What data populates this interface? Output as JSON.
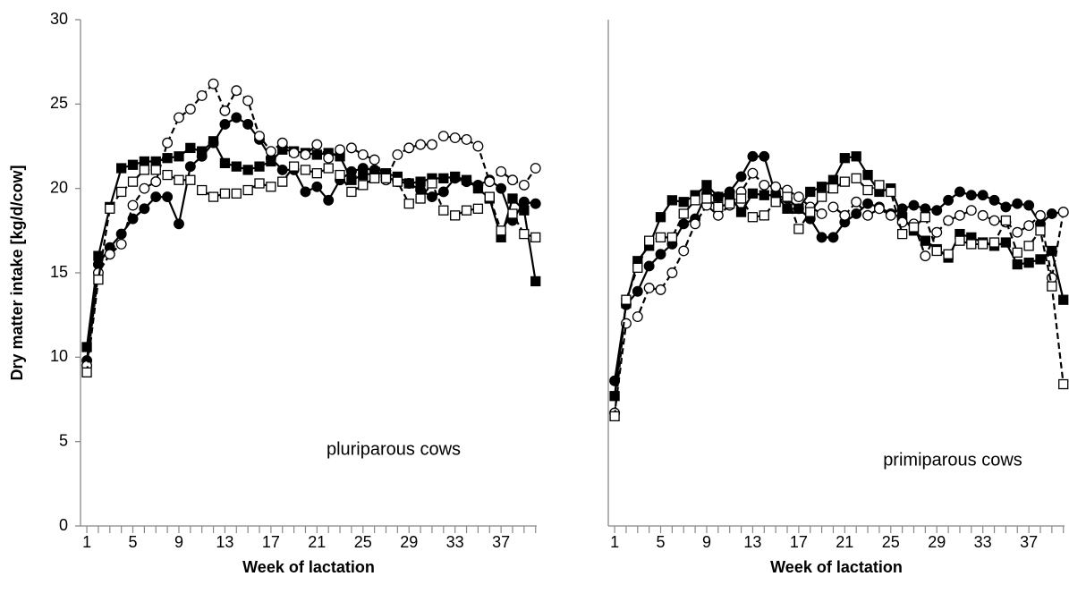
{
  "chart_data": [
    {
      "type": "line",
      "xlabel": "Week of lactation",
      "ylabel": "Dry matter intake [kg/d/cow]",
      "annotation": "pluriparous cows",
      "x": [
        1,
        2,
        3,
        4,
        5,
        6,
        7,
        8,
        9,
        10,
        11,
        12,
        13,
        14,
        15,
        16,
        17,
        18,
        19,
        20,
        21,
        22,
        23,
        24,
        25,
        26,
        27,
        28,
        29,
        30,
        31,
        32,
        33,
        34,
        35,
        36,
        37,
        38,
        39,
        40
      ],
      "xlim": [
        0.45,
        40.1
      ],
      "xticks": [
        1,
        5,
        9,
        13,
        17,
        21,
        25,
        29,
        33,
        37
      ],
      "xminor_ticks": [
        1,
        2,
        3,
        4,
        5,
        6,
        7,
        8,
        9,
        10,
        11,
        12,
        13,
        14,
        15,
        16,
        17,
        18,
        19,
        20,
        21,
        22,
        23,
        24,
        25,
        26,
        27,
        28,
        29,
        30,
        31,
        32,
        33,
        34,
        35,
        36,
        37,
        38,
        39,
        40
      ],
      "ylim": [
        0,
        30
      ],
      "yticks": [
        0,
        5,
        10,
        15,
        20,
        25,
        30
      ],
      "series": [
        {
          "marker": "circle",
          "filled": true,
          "dashed": false,
          "color": "#000000",
          "values": [
            9.8,
            15.5,
            16.5,
            17.3,
            18.2,
            18.8,
            19.5,
            19.5,
            17.9,
            21.3,
            21.9,
            22.7,
            23.8,
            24.2,
            23.8,
            22.9,
            21.8,
            21.1,
            21.1,
            19.8,
            20.1,
            19.3,
            20.5,
            21.0,
            21.2,
            21.1,
            20.7,
            20.4,
            20.3,
            19.9,
            19.5,
            19.8,
            20.6,
            20.4,
            20.2,
            20.5,
            20.0,
            18.1,
            19.2,
            19.1
          ]
        },
        {
          "marker": "square",
          "filled": true,
          "dashed": false,
          "color": "#000000",
          "values": [
            10.6,
            16.0,
            18.9,
            21.2,
            21.4,
            21.6,
            21.6,
            21.8,
            21.9,
            22.4,
            22.2,
            22.8,
            21.5,
            21.3,
            21.1,
            21.3,
            21.6,
            22.3,
            22.2,
            22.1,
            22.0,
            22.1,
            21.9,
            20.5,
            20.8,
            20.9,
            20.9,
            20.7,
            20.3,
            20.4,
            20.6,
            20.6,
            20.7,
            20.5,
            20.0,
            19.4,
            17.1,
            19.4,
            18.7,
            14.5
          ]
        },
        {
          "marker": "circle",
          "filled": false,
          "dashed": true,
          "color": "#000000",
          "values": [
            9.5,
            15.0,
            16.1,
            16.7,
            19.0,
            20.0,
            20.4,
            22.7,
            24.2,
            24.7,
            25.5,
            26.2,
            24.6,
            25.8,
            25.2,
            23.1,
            22.2,
            22.7,
            22.1,
            22.0,
            22.6,
            21.8,
            22.3,
            22.4,
            22.0,
            21.7,
            20.5,
            22.0,
            22.4,
            22.6,
            22.6,
            23.1,
            23.0,
            22.9,
            22.5,
            20.4,
            21.0,
            20.5,
            20.2,
            21.2
          ]
        },
        {
          "marker": "square",
          "filled": false,
          "dashed": true,
          "color": "#000000",
          "values": [
            9.1,
            14.6,
            18.8,
            19.8,
            20.4,
            21.1,
            21.1,
            20.8,
            20.5,
            20.5,
            19.9,
            19.5,
            19.7,
            19.7,
            19.9,
            20.3,
            20.1,
            20.4,
            21.3,
            21.1,
            20.9,
            21.2,
            20.8,
            19.8,
            20.2,
            20.6,
            20.6,
            20.4,
            19.1,
            19.4,
            20.3,
            18.7,
            18.4,
            18.7,
            18.8,
            19.5,
            17.5,
            18.5,
            17.3,
            17.1
          ]
        }
      ]
    },
    {
      "type": "line",
      "xlabel": "Week of lactation",
      "annotation": "primiparous cows",
      "x": [
        1,
        2,
        3,
        4,
        5,
        6,
        7,
        8,
        9,
        10,
        11,
        12,
        13,
        14,
        15,
        16,
        17,
        18,
        19,
        20,
        21,
        22,
        23,
        24,
        25,
        26,
        27,
        28,
        29,
        30,
        31,
        32,
        33,
        34,
        35,
        36,
        37,
        38,
        39,
        40
      ],
      "xlim": [
        0.45,
        40.1
      ],
      "xticks": [
        1,
        5,
        9,
        13,
        17,
        21,
        25,
        29,
        33,
        37
      ],
      "xminor_ticks": [
        1,
        2,
        3,
        4,
        5,
        6,
        7,
        8,
        9,
        10,
        11,
        12,
        13,
        14,
        15,
        16,
        17,
        18,
        19,
        20,
        21,
        22,
        23,
        24,
        25,
        26,
        27,
        28,
        29,
        30,
        31,
        32,
        33,
        34,
        35,
        36,
        37,
        38,
        39,
        40
      ],
      "ylim": [
        0,
        30
      ],
      "series": [
        {
          "marker": "circle",
          "filled": true,
          "dashed": false,
          "color": "#000000",
          "values": [
            8.6,
            13.1,
            13.9,
            15.4,
            16.1,
            16.7,
            17.9,
            18.2,
            19.7,
            19.5,
            19.8,
            20.7,
            21.9,
            21.9,
            19.6,
            19.4,
            18.8,
            18.2,
            17.1,
            17.1,
            18.0,
            18.5,
            19.1,
            18.9,
            18.5,
            18.8,
            19.0,
            18.8,
            18.7,
            19.3,
            19.8,
            19.6,
            19.6,
            19.3,
            18.9,
            19.1,
            19.0,
            17.9,
            18.5,
            18.6
          ]
        },
        {
          "marker": "square",
          "filled": true,
          "dashed": false,
          "color": "#000000",
          "values": [
            7.7,
            13.2,
            15.7,
            16.6,
            18.3,
            19.3,
            19.2,
            19.6,
            20.2,
            19.5,
            19.6,
            18.6,
            19.7,
            19.6,
            19.6,
            18.8,
            18.8,
            19.8,
            20.1,
            20.5,
            21.8,
            21.9,
            20.8,
            19.8,
            20.0,
            18.3,
            17.5,
            16.9,
            16.4,
            15.9,
            17.3,
            17.1,
            16.8,
            16.6,
            16.8,
            15.5,
            15.6,
            15.8,
            16.3,
            13.4
          ]
        },
        {
          "marker": "circle",
          "filled": false,
          "dashed": true,
          "color": "#000000",
          "values": [
            6.7,
            12.0,
            12.4,
            14.1,
            14.0,
            15.0,
            16.3,
            17.9,
            19.0,
            18.4,
            19.0,
            19.8,
            20.9,
            20.2,
            20.1,
            19.9,
            19.5,
            18.9,
            18.5,
            18.9,
            18.4,
            19.2,
            18.4,
            18.8,
            18.4,
            18.0,
            17.9,
            16.0,
            17.4,
            18.1,
            18.4,
            18.7,
            18.4,
            18.1,
            18.0,
            17.4,
            17.8,
            18.4,
            14.7,
            18.6
          ]
        },
        {
          "marker": "square",
          "filled": false,
          "dashed": true,
          "color": "#000000",
          "values": [
            6.5,
            13.4,
            15.3,
            16.9,
            17.1,
            17.1,
            18.5,
            19.3,
            19.4,
            18.9,
            19.1,
            19.4,
            18.3,
            18.4,
            19.2,
            19.5,
            17.6,
            18.6,
            19.5,
            20.0,
            20.4,
            20.6,
            19.9,
            20.2,
            19.8,
            17.3,
            17.7,
            18.3,
            16.3,
            16.1,
            16.9,
            16.7,
            16.7,
            16.8,
            18.1,
            16.2,
            16.6,
            17.5,
            14.2,
            8.4
          ]
        }
      ]
    }
  ]
}
